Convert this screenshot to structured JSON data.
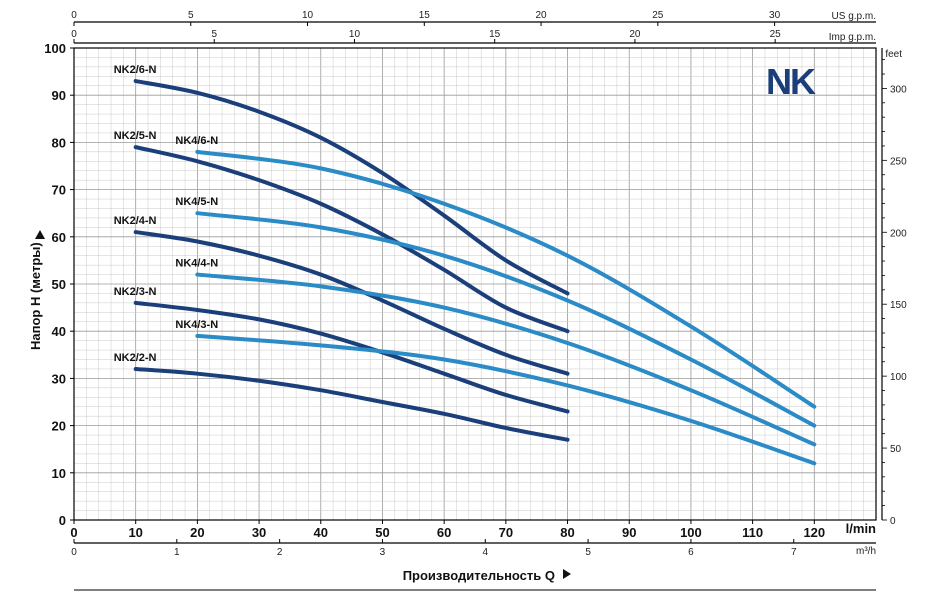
{
  "chart_data": {
    "type": "line",
    "logo": "NK",
    "ylabel": "Напор H (метры)",
    "xlabel": "Производительность Q",
    "x_units": {
      "lmin": "l/min",
      "m3h": "m³/h",
      "us_gpm": "US g.p.m.",
      "imp_gpm": "Imp g.p.m.",
      "feet": "feet"
    },
    "xlim": [
      0,
      130
    ],
    "ylim": [
      0,
      100
    ],
    "x_ticks_lmin": [
      0,
      10,
      20,
      30,
      40,
      50,
      60,
      70,
      80,
      90,
      100,
      110,
      120
    ],
    "y_ticks_m": [
      0,
      10,
      20,
      30,
      40,
      50,
      60,
      70,
      80,
      90,
      100
    ],
    "x_ticks_m3h": [
      0,
      1,
      2,
      3,
      4,
      5,
      6,
      7
    ],
    "x_ticks_us_gpm": [
      0,
      5,
      10,
      15,
      20,
      25,
      30
    ],
    "x_ticks_imp_gpm": [
      0,
      5,
      10,
      15,
      20,
      25
    ],
    "y_ticks_feet": [
      0,
      50,
      100,
      150,
      200,
      250,
      300
    ],
    "grid": true,
    "series": [
      {
        "name": "NK2/6-N",
        "color": "#1b3f7a",
        "x": [
          10,
          20,
          30,
          40,
          50,
          60,
          70,
          80
        ],
        "y": [
          93,
          90.5,
          86.5,
          81,
          73.5,
          64.5,
          55,
          48
        ]
      },
      {
        "name": "NK2/5-N",
        "color": "#1b3f7a",
        "x": [
          10,
          20,
          30,
          40,
          50,
          60,
          70,
          80
        ],
        "y": [
          79,
          76,
          72,
          67,
          60.5,
          53,
          45,
          40
        ]
      },
      {
        "name": "NK2/4-N",
        "color": "#1b3f7a",
        "x": [
          10,
          20,
          30,
          40,
          50,
          60,
          70,
          80
        ],
        "y": [
          61,
          59,
          56,
          52,
          46.5,
          40.5,
          35,
          31
        ]
      },
      {
        "name": "NK2/3-N",
        "color": "#1b3f7a",
        "x": [
          10,
          20,
          30,
          40,
          50,
          60,
          70,
          80
        ],
        "y": [
          46,
          44.5,
          42.5,
          39.5,
          35.5,
          31,
          26.5,
          23
        ]
      },
      {
        "name": "NK2/2-N",
        "color": "#1b3f7a",
        "x": [
          10,
          20,
          30,
          40,
          50,
          60,
          70,
          80
        ],
        "y": [
          32,
          31,
          29.5,
          27.5,
          25,
          22.5,
          19.5,
          17
        ]
      },
      {
        "name": "NK4/6-N",
        "color": "#2a8bc6",
        "x": [
          20,
          40,
          60,
          80,
          100,
          120
        ],
        "y": [
          78,
          74.5,
          67,
          56,
          41,
          24
        ]
      },
      {
        "name": "NK4/5-N",
        "color": "#2a8bc6",
        "x": [
          20,
          40,
          60,
          80,
          100,
          120
        ],
        "y": [
          65,
          62,
          56,
          46.5,
          34,
          20
        ]
      },
      {
        "name": "NK4/4-N",
        "color": "#2a8bc6",
        "x": [
          20,
          40,
          60,
          80,
          100,
          120
        ],
        "y": [
          52,
          49.5,
          45,
          37.5,
          27.5,
          16
        ]
      },
      {
        "name": "NK4/3-N",
        "color": "#2a8bc6",
        "x": [
          20,
          40,
          60,
          80,
          100,
          120
        ],
        "y": [
          39,
          37,
          34,
          28.5,
          21,
          12
        ]
      }
    ]
  }
}
